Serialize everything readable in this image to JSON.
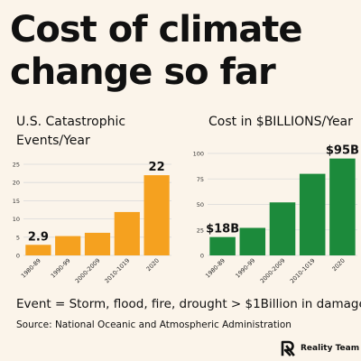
{
  "title_line1": "Cost of climate",
  "title_line2": "change so far",
  "left_chart_label_line1": "U.S. Catastrophic",
  "left_chart_label_line2": "Events/Year",
  "right_chart_label": "Cost in $BILLIONS/Year",
  "footnote": "Event = Storm, flood, fire, drought  > $1Billion in damage.",
  "source": "Source: National Oceanic and Atmospheric Administration",
  "brand": "Reality Team",
  "colors": {
    "background": "#fbf4ea",
    "orange": "#f5a11f",
    "green": "#1c8a3b",
    "gridline": "#d9d9d9"
  },
  "chart_data": [
    {
      "type": "bar",
      "categories": [
        "1980-89",
        "1990-99",
        "2000-2009",
        "2010-1019",
        "2020"
      ],
      "values": [
        2.9,
        5.3,
        6.2,
        11.9,
        22
      ],
      "ylim": [
        0,
        25
      ],
      "yticks": [
        0,
        5,
        10,
        15,
        20,
        25
      ],
      "data_labels": [
        {
          "index": 0,
          "text": "2.9"
        },
        {
          "index": 4,
          "text": "22"
        }
      ],
      "grid": true
    },
    {
      "type": "bar",
      "categories": [
        "1980-89",
        "1990-99",
        "2000-2009",
        "2010-1019",
        "2020"
      ],
      "values": [
        18,
        27,
        52,
        80,
        95
      ],
      "ylim": [
        0,
        100
      ],
      "yticks": [
        0,
        25,
        50,
        75,
        100
      ],
      "data_labels": [
        {
          "index": 0,
          "text": "$18B"
        },
        {
          "index": 4,
          "text": "$95B"
        }
      ],
      "grid": true
    }
  ]
}
